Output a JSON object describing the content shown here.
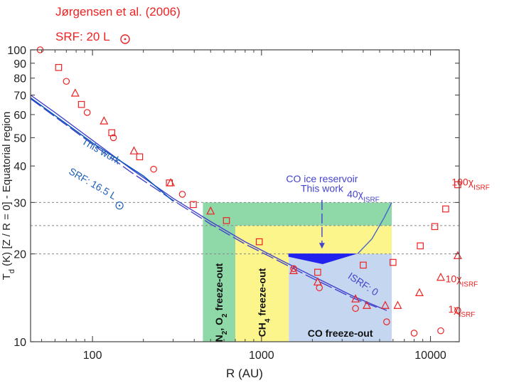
{
  "chart_data": {
    "type": "scatter",
    "xscale": "log",
    "yscale": "log",
    "xlim": [
      43,
      14800
    ],
    "ylim": [
      10,
      100
    ],
    "xlabel": "R (AU)",
    "ylabel": {
      "prefix": "T",
      "sub": "d",
      "rest": " (K) [Z / R = 0] - Equatorial region"
    },
    "x_ticks": [
      {
        "value": 100,
        "label": "100"
      },
      {
        "value": 1000,
        "label": "1000"
      },
      {
        "value": 10000,
        "label": "10000"
      }
    ],
    "y_ticks": [
      {
        "value": 10,
        "label": "10"
      },
      {
        "value": 20,
        "label": "20"
      },
      {
        "value": 30,
        "label": "30"
      },
      {
        "value": 40,
        "label": "40"
      },
      {
        "value": 50,
        "label": "50"
      },
      {
        "value": 60,
        "label": "60"
      },
      {
        "value": 70,
        "label": "70"
      },
      {
        "value": 80,
        "label": "80"
      },
      {
        "value": 90,
        "label": "90"
      },
      {
        "value": 100,
        "label": "100"
      }
    ],
    "reference_lines": [
      20,
      25,
      30
    ],
    "header": {
      "citation": "Jørgensen et al. (2006)",
      "srf_label": "SRF: 20 L"
    },
    "regions": [
      {
        "name": "N2-O2-freeze-out",
        "x": [
          450,
          700
        ],
        "y": [
          10,
          30
        ],
        "color": "#8fd9a8",
        "label_parts": [
          "N",
          "2",
          ", O",
          "2",
          " freeze-out"
        ]
      },
      {
        "name": "CH4-freeze-out",
        "x": [
          700,
          1450
        ],
        "y": [
          10,
          25
        ],
        "color": "#fcf58c",
        "label_parts": [
          "CH",
          "4",
          " freeze-out"
        ]
      },
      {
        "name": "CO-freeze-out",
        "x": [
          1450,
          5900
        ],
        "y": [
          10,
          20
        ],
        "color": "#c5d7f0",
        "label_parts": [
          "CO freeze-out"
        ]
      },
      {
        "name": "upper-green",
        "x": [
          700,
          5900
        ],
        "y": [
          25,
          30
        ],
        "color": "#8fd9a8"
      },
      {
        "name": "upper-yellow",
        "x": [
          1450,
          5900
        ],
        "y": [
          20,
          25
        ],
        "color": "#fcf58c"
      }
    ],
    "series": [
      {
        "name": "Jorgensen-circles",
        "marker": "circle",
        "color": "#ee2222",
        "points": [
          [
            49,
            100
          ],
          [
            70,
            78
          ],
          [
            93,
            61
          ],
          [
            133,
            50
          ],
          [
            230,
            39
          ],
          [
            340,
            32
          ],
          [
            1550,
            17.8
          ],
          [
            2200,
            15.3
          ],
          [
            3600,
            13.0
          ],
          [
            5500,
            11.7
          ],
          [
            8000,
            10.7
          ],
          [
            11500,
            10.9
          ],
          [
            14500,
            12.8
          ]
        ]
      },
      {
        "name": "Jorgensen-triangles",
        "marker": "triangle",
        "color": "#ee2222",
        "points": [
          [
            79,
            71
          ],
          [
            117,
            57
          ],
          [
            176,
            45
          ],
          [
            290,
            35
          ],
          [
            500,
            28
          ],
          [
            1550,
            17.5
          ],
          [
            2150,
            16.0
          ],
          [
            3600,
            14.0
          ],
          [
            4200,
            13.3
          ],
          [
            5400,
            13.3
          ],
          [
            6400,
            13.3
          ],
          [
            8600,
            14.7
          ],
          [
            11500,
            16.6
          ],
          [
            14500,
            19.7
          ]
        ]
      },
      {
        "name": "Jorgensen-squares",
        "marker": "square",
        "color": "#ee2222",
        "points": [
          [
            63,
            87
          ],
          [
            86,
            65
          ],
          [
            130,
            52
          ],
          [
            190,
            43
          ],
          [
            285,
            35
          ],
          [
            395,
            29.5
          ],
          [
            620,
            26
          ],
          [
            970,
            22
          ],
          [
            2150,
            17.3
          ],
          [
            4000,
            18.3
          ],
          [
            6000,
            18.7
          ],
          [
            8700,
            21.3
          ],
          [
            10600,
            24.8
          ],
          [
            12300,
            28.5
          ],
          [
            14500,
            34.5
          ]
        ]
      }
    ],
    "curves": [
      {
        "name": "this-work-solid",
        "color": "#4444cc",
        "dash": "",
        "points": [
          [
            43,
            70
          ],
          [
            60,
            61
          ],
          [
            100,
            49
          ],
          [
            170,
            39
          ],
          [
            300,
            31
          ],
          [
            500,
            25.8
          ],
          [
            800,
            22
          ],
          [
            1200,
            19.5
          ],
          [
            2000,
            16.8
          ],
          [
            3500,
            14.3
          ],
          [
            5500,
            12.8
          ]
        ]
      },
      {
        "name": "this-work-dashed",
        "color": "#4444cc",
        "dash": "18 5",
        "points": [
          [
            43,
            68
          ],
          [
            60,
            59
          ],
          [
            100,
            47.5
          ],
          [
            170,
            38
          ],
          [
            300,
            30.5
          ],
          [
            500,
            25.3
          ],
          [
            800,
            21.6
          ],
          [
            1200,
            19.2
          ],
          [
            2000,
            16.5
          ],
          [
            3500,
            14.1
          ],
          [
            5000,
            13.0
          ]
        ]
      },
      {
        "name": "srf-16-5-curve",
        "color": "#0055bb",
        "dash": "",
        "points": [
          [
            43,
            68.5
          ],
          [
            100,
            48
          ],
          [
            200,
            37
          ],
          [
            300,
            30.3
          ]
        ]
      },
      {
        "name": "isrf-40-curve",
        "color": "#4466cc",
        "dash": "",
        "points": [
          [
            3700,
            20
          ],
          [
            4500,
            22.5
          ],
          [
            5300,
            26.5
          ],
          [
            5900,
            30
          ]
        ]
      }
    ],
    "co_reservoir": {
      "points": [
        [
          1450,
          20
        ],
        [
          3600,
          20
        ],
        [
          2300,
          18.5
        ],
        [
          1450,
          19.6
        ]
      ],
      "color": "#2222ee"
    },
    "annotations": [
      {
        "name": "this-work-label",
        "text": "This work",
        "x": 110,
        "y": 44,
        "color": "#1d5fb5",
        "rotate": 30
      },
      {
        "name": "srf-16-5-label",
        "text": "SRF: 16.5 L",
        "x": 98,
        "y": 34,
        "color": "#1d5fb5",
        "rotate": 30,
        "sun": true
      },
      {
        "name": "co-ice-reservoir-label",
        "text": "CO ice reservoir",
        "x": 2280,
        "y": 35.2,
        "color": "#4444cc",
        "rotate": 0
      },
      {
        "name": "co-this-work-label",
        "text": "This work",
        "x": 2280,
        "y": 32.6,
        "color": "#4444cc",
        "rotate": 0
      },
      {
        "name": "isrf-0-label",
        "text": "ISRF: 0",
        "x": 3900,
        "y": 15.4,
        "color": "#4444cc",
        "rotate": 33
      },
      {
        "name": "isrf-40-label",
        "text": "40",
        "chi": "ISRF",
        "x": 4000,
        "y": 31.2,
        "color": "#4444cc",
        "rotate": 0
      },
      {
        "name": "isrf-100-label",
        "text": "100",
        "chi": "ISRF",
        "x": 17300,
        "y": 34.3,
        "color": "#ee2222",
        "rotate": 0
      },
      {
        "name": "isrf-10-label",
        "text": "10",
        "chi": "ISRF",
        "x": 15300,
        "y": 16.0,
        "color": "#ee2222",
        "rotate": 0
      },
      {
        "name": "isrf-1-label",
        "text": "1",
        "chi": "ISRF",
        "x": 15300,
        "y": 12.6,
        "color": "#ee2222",
        "rotate": 0
      }
    ]
  }
}
